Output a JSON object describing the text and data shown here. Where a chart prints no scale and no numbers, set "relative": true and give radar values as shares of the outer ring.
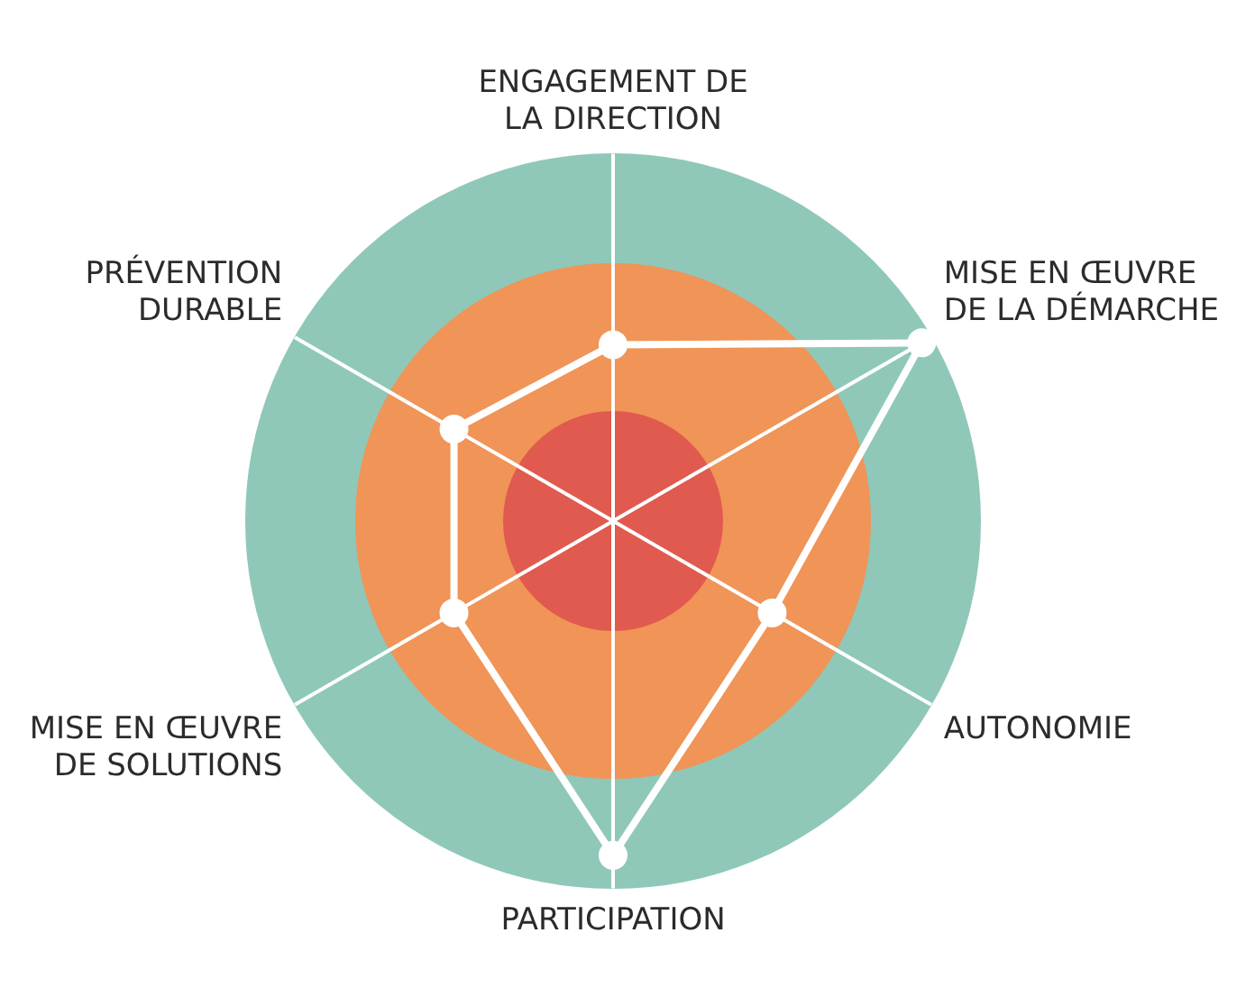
{
  "chart_data": {
    "type": "radar",
    "relative": true,
    "categories": [
      "ENGAGEMENT DE LA DIRECTION",
      "MISE EN ŒUVRE DE LA DÉMARCHE",
      "AUTONOMIE",
      "PARTICIPATION",
      "MISE EN ŒUVRE DE SOLUTIONS",
      "PRÉVENTION DURABLE"
    ],
    "series": [
      {
        "color": "#ffffff",
        "values": [
          0.48,
          0.97,
          0.5,
          0.91,
          0.5,
          0.5
        ]
      }
    ],
    "marker": "circle",
    "legend": false,
    "grid": "x"
  }
}
